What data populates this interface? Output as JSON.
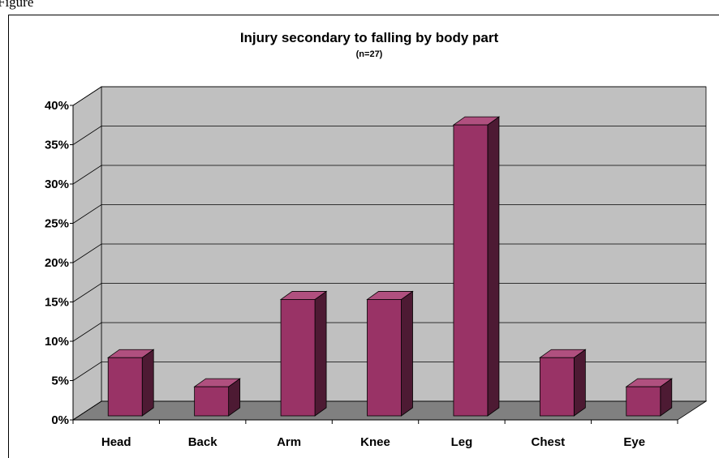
{
  "figure_label": "Figure",
  "chart_data": {
    "type": "bar3d",
    "title": "Injury secondary to falling by body part",
    "subtitle": "(n=27)",
    "categories": [
      "Head",
      "Back",
      "Arm",
      "Knee",
      "Leg",
      "Chest",
      "Eye"
    ],
    "values": [
      7.4,
      3.7,
      14.8,
      14.8,
      37.0,
      7.4,
      3.7
    ],
    "color": "#993366",
    "ylim": [
      0,
      40
    ],
    "yticks": [
      {
        "value": 0,
        "label": "0%"
      },
      {
        "value": 5,
        "label": "5%"
      },
      {
        "value": 10,
        "label": "10%"
      },
      {
        "value": 15,
        "label": "15%"
      },
      {
        "value": 20,
        "label": "20%"
      },
      {
        "value": 25,
        "label": "25%"
      },
      {
        "value": 30,
        "label": "30%"
      },
      {
        "value": 35,
        "label": "35%"
      },
      {
        "value": 40,
        "label": "40%"
      }
    ],
    "grid": true
  }
}
